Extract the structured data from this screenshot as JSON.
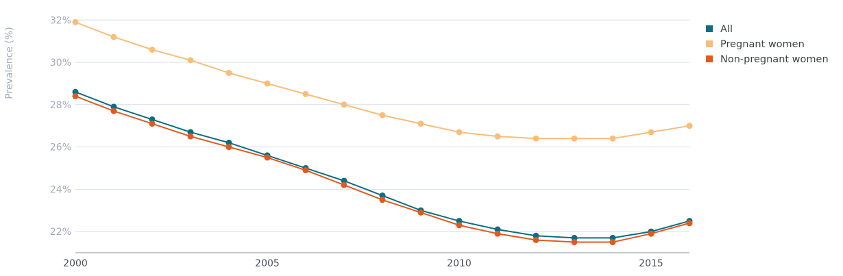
{
  "chart_data": {
    "type": "line",
    "ylabel": "Prevalence (%)",
    "xlim": [
      2000,
      2016
    ],
    "ylim": [
      21,
      32.3
    ],
    "y_ticks": [
      22,
      24,
      26,
      28,
      30,
      32
    ],
    "y_tick_labels": [
      "22%",
      "24%",
      "26%",
      "28%",
      "30%",
      "32%"
    ],
    "x_ticks": [
      2000,
      2005,
      2010,
      2015
    ],
    "x_tick_labels": [
      "2000",
      "2005",
      "2010",
      "2015"
    ],
    "grid": true,
    "legend_position": "top-right",
    "x": [
      2000,
      2001,
      2002,
      2003,
      2004,
      2005,
      2006,
      2007,
      2008,
      2009,
      2010,
      2011,
      2012,
      2013,
      2014,
      2015,
      2016
    ],
    "series": [
      {
        "name": "Pregnant women",
        "color": "#f9bd7a",
        "values": [
          31.9,
          31.2,
          30.6,
          30.1,
          29.5,
          29.0,
          28.5,
          28.0,
          27.5,
          27.1,
          26.7,
          26.5,
          26.4,
          26.4,
          26.4,
          26.7,
          27.0
        ]
      },
      {
        "name": "All",
        "color": "#0b6e84",
        "values": [
          28.6,
          27.9,
          27.3,
          26.7,
          26.2,
          25.6,
          25.0,
          24.4,
          23.7,
          23.0,
          22.5,
          22.1,
          21.8,
          21.7,
          21.7,
          22.0,
          22.5
        ]
      },
      {
        "name": "Non-pregnant women",
        "color": "#e05a20",
        "values": [
          28.4,
          27.7,
          27.1,
          26.5,
          26.0,
          25.5,
          24.9,
          24.2,
          23.5,
          22.9,
          22.3,
          21.9,
          21.6,
          21.5,
          21.5,
          21.9,
          22.4
        ]
      }
    ],
    "legend": [
      {
        "label": "All",
        "color": "#0b6e84"
      },
      {
        "label": "Pregnant women",
        "color": "#f9bd7a"
      },
      {
        "label": "Non-pregnant women",
        "color": "#e05a20"
      }
    ]
  }
}
